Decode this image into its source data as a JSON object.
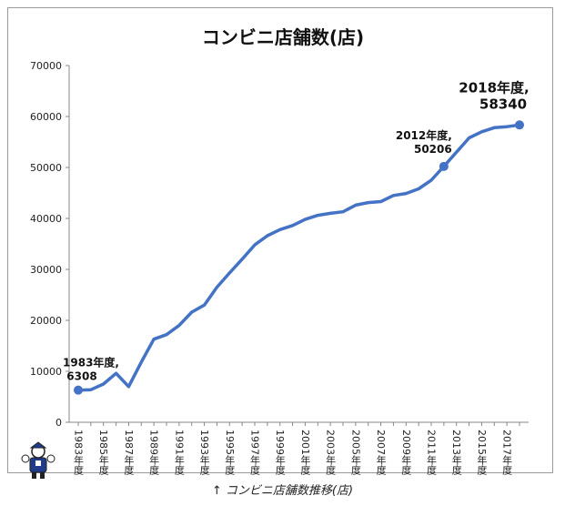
{
  "caption": "↑ コンビニ店舗数推移(店)",
  "chart_data": {
    "type": "line",
    "title": "コンビニ店舗数(店)",
    "xlabel": "",
    "ylabel": "",
    "ylim": [
      0,
      70000
    ],
    "yticks": [
      0,
      10000,
      20000,
      30000,
      40000,
      50000,
      60000,
      70000
    ],
    "ytick_labels": [
      "0",
      "10000",
      "20000",
      "30000",
      "40000",
      "50000",
      "60000",
      "70000"
    ],
    "grid": false,
    "line_color": "#4472C4",
    "categories": [
      "1983年度",
      "1984年度",
      "1985年度",
      "1986年度",
      "1987年度",
      "1988年度",
      "1989年度",
      "1990年度",
      "1991年度",
      "1992年度",
      "1993年度",
      "1994年度",
      "1995年度",
      "1996年度",
      "1997年度",
      "1998年度",
      "1999年度",
      "2000年度",
      "2001年度",
      "2002年度",
      "2003年度",
      "2004年度",
      "2005年度",
      "2006年度",
      "2007年度",
      "2008年度",
      "2009年度",
      "2010年度",
      "2011年度",
      "2012年度",
      "2013年度",
      "2014年度",
      "2015年度",
      "2016年度",
      "2017年度",
      "2018年度"
    ],
    "xtick_labels": [
      "1983年度",
      "",
      "1985年度",
      "",
      "1987年度",
      "",
      "1989年度",
      "",
      "1991年度",
      "",
      "1993年度",
      "",
      "1995年度",
      "",
      "1997年度",
      "",
      "1999年度",
      "",
      "2001年度",
      "",
      "2003年度",
      "",
      "2005年度",
      "",
      "2007年度",
      "",
      "2009年度",
      "",
      "2011年度",
      "",
      "2013年度",
      "",
      "2015年度",
      "",
      "2017年度",
      ""
    ],
    "series": [
      {
        "values": [
          6308,
          6400,
          7500,
          9600,
          7000,
          11800,
          16300,
          17200,
          19000,
          21600,
          23000,
          26500,
          29300,
          32000,
          34800,
          36600,
          37800,
          38600,
          39800,
          40600,
          41000,
          41300,
          42600,
          43100,
          43300,
          44500,
          44900,
          45800,
          47500,
          50206,
          53000,
          55800,
          57000,
          57800,
          58000,
          58340
        ]
      }
    ],
    "annotations": [
      {
        "index": 0,
        "line1": "1983年度,",
        "line2": "6308"
      },
      {
        "index": 29,
        "line1": "2012年度,",
        "line2": "50206"
      },
      {
        "index": 35,
        "line1": "2018年度,",
        "line2": "58340"
      }
    ]
  }
}
